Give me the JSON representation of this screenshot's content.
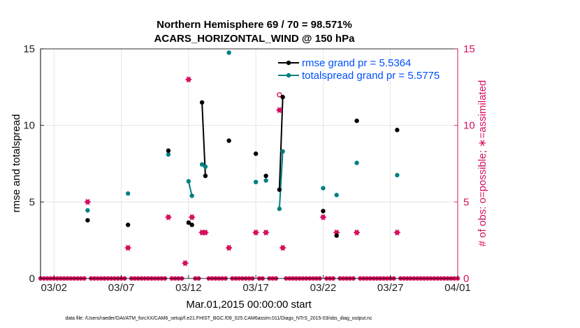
{
  "chart_data": {
    "type": "scatter",
    "title_line1": "Northern Hemisphere 69 / 70 = 98.571%",
    "title_line2": "ACARS_HORIZONTAL_WIND @ 150 hPa",
    "xlabel": "Mar.01,2015 00:00:00 start",
    "ylabel_left": "rmse and totalspread",
    "ylabel_right": "# of obs: o=possible; ∗=assimilated",
    "xlim": [
      0,
      31
    ],
    "ylim_left": [
      0,
      15
    ],
    "ylim_right": [
      0,
      15
    ],
    "x_ticks": [
      {
        "x": 1,
        "label": "03/02"
      },
      {
        "x": 6,
        "label": "03/07"
      },
      {
        "x": 11,
        "label": "03/12"
      },
      {
        "x": 16,
        "label": "03/17"
      },
      {
        "x": 21,
        "label": "03/22"
      },
      {
        "x": 26,
        "label": "03/27"
      },
      {
        "x": 31,
        "label": "04/01"
      }
    ],
    "y_ticks_left": [
      "0",
      "5",
      "10",
      "15"
    ],
    "y_ticks_right": [
      "0",
      "5",
      "10",
      "15"
    ],
    "colors": {
      "rmse": "#000000",
      "spread": "#008080",
      "obs": "#d6105f",
      "legend_text": "#0050ff",
      "grid": "#e0e0e0"
    },
    "series": [
      {
        "name": "rmse",
        "legend": "rmse grand pr = 5.5364",
        "points": [
          [
            3.5,
            3.8
          ],
          [
            6.5,
            3.5
          ],
          [
            9.5,
            8.35
          ],
          [
            11.0,
            3.65
          ],
          [
            11.25,
            3.5
          ],
          [
            12.0,
            11.5
          ],
          [
            12.25,
            6.7
          ],
          [
            14.0,
            9.0
          ],
          [
            16.0,
            8.15
          ],
          [
            16.75,
            6.7
          ],
          [
            17.75,
            5.8
          ],
          [
            18.0,
            11.85
          ],
          [
            21.0,
            4.4
          ],
          [
            22.0,
            2.8
          ],
          [
            23.5,
            10.3
          ],
          [
            26.5,
            9.7
          ]
        ],
        "segments": [
          [
            11.0,
            11.25
          ],
          [
            12.0,
            12.25
          ],
          [
            17.75,
            18.0
          ]
        ]
      },
      {
        "name": "totalspread",
        "legend": "totalspread grand pr = 5.5775",
        "points": [
          [
            3.5,
            4.45
          ],
          [
            6.5,
            5.55
          ],
          [
            9.5,
            8.1
          ],
          [
            11.0,
            6.35
          ],
          [
            11.25,
            5.4
          ],
          [
            12.0,
            7.45
          ],
          [
            12.25,
            7.3
          ],
          [
            14.0,
            14.75
          ],
          [
            16.0,
            6.3
          ],
          [
            16.75,
            6.4
          ],
          [
            17.75,
            4.55
          ],
          [
            18.0,
            8.3
          ],
          [
            21.0,
            5.9
          ],
          [
            22.0,
            5.45
          ],
          [
            23.5,
            7.55
          ],
          [
            26.5,
            6.75
          ]
        ],
        "segments": [
          [
            11.0,
            11.25
          ],
          [
            12.0,
            12.25
          ],
          [
            17.75,
            18.0
          ]
        ]
      },
      {
        "name": "nobs_assimilated",
        "points": [
          [
            3.5,
            5
          ],
          [
            6.5,
            2
          ],
          [
            9.5,
            4
          ],
          [
            10.75,
            1
          ],
          [
            11.0,
            13
          ],
          [
            11.25,
            4
          ],
          [
            12.0,
            3
          ],
          [
            12.25,
            3
          ],
          [
            14.0,
            2
          ],
          [
            16.0,
            3
          ],
          [
            16.75,
            3
          ],
          [
            17.75,
            11
          ],
          [
            18.0,
            2
          ],
          [
            21.0,
            4
          ],
          [
            22.0,
            3
          ],
          [
            23.5,
            3
          ],
          [
            26.5,
            3
          ]
        ]
      },
      {
        "name": "nobs_possible",
        "points": [
          [
            17.75,
            12
          ]
        ]
      }
    ],
    "zero_marker_step": 0.25
  },
  "footer": "data file: /Users/raeder/DAI/ATM_forcXX/CAM6_setup/f.e21.FHIST_BGC.f09_025.CAM6assim.011/Diags_NTrS_2015-03/obs_diag_output.nc"
}
